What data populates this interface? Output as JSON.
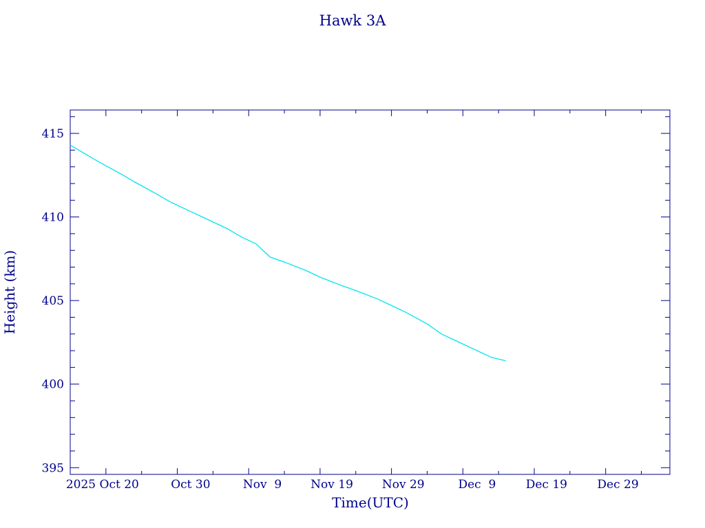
{
  "chart_data": {
    "type": "line",
    "title": "Hawk 3A",
    "xlabel": "Time(UTC)",
    "ylabel": "Height (km)",
    "x_tick_labels": [
      "2025 Oct 20",
      "Oct 30",
      "Nov  9",
      "Nov 19",
      "Nov 29",
      "Dec  9",
      "Dec 19",
      "Dec 29"
    ],
    "y_tick_labels": [
      "395",
      "400",
      "405",
      "410",
      "415"
    ],
    "xlim": [
      "2025-10-15",
      "2026-01-07"
    ],
    "ylim": [
      394.6,
      416.4
    ],
    "grid": false,
    "colors": {
      "axis": "#00008b",
      "line": "#00e5ee",
      "background": "#ffffff"
    },
    "series": [
      {
        "x": [
          "2025-10-15",
          "2025-10-17",
          "2025-10-19",
          "2025-10-22",
          "2025-10-24",
          "2025-10-27",
          "2025-10-29",
          "2025-11-01",
          "2025-11-03",
          "2025-11-06",
          "2025-11-08",
          "2025-11-10",
          "2025-11-12",
          "2025-11-14",
          "2025-11-17",
          "2025-11-19",
          "2025-11-22",
          "2025-11-24",
          "2025-11-27",
          "2025-11-29",
          "2025-12-01",
          "2025-12-04",
          "2025-12-06",
          "2025-12-08",
          "2025-12-11",
          "2025-12-13",
          "2025-12-15"
        ],
        "y": [
          414.3,
          413.8,
          413.3,
          412.6,
          412.1,
          411.4,
          410.9,
          410.3,
          409.9,
          409.3,
          408.8,
          408.4,
          407.6,
          407.3,
          406.8,
          406.4,
          405.9,
          405.6,
          405.1,
          404.7,
          404.3,
          403.6,
          403.0,
          402.6,
          402.0,
          401.6,
          401.4
        ]
      }
    ]
  }
}
